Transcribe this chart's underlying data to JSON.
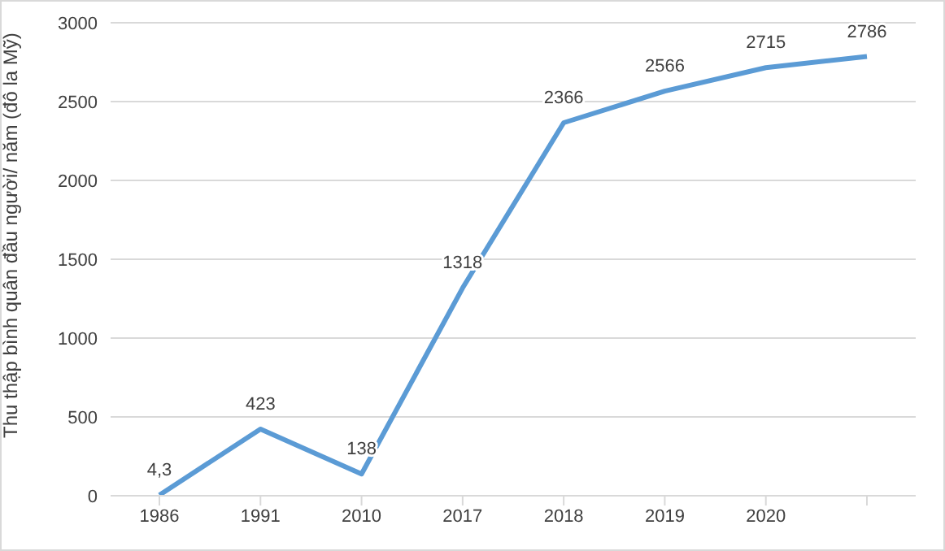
{
  "chart_data": {
    "type": "line",
    "ylabel": "Thu thập bình quân đầu người/ năm (đô la Mỹ)",
    "categories": [
      "1986",
      "1991",
      "2010",
      "2017",
      "2018",
      "2019",
      "2020",
      null
    ],
    "series": [
      {
        "color": "#5b9bd5",
        "values": [
          4.3,
          423,
          138,
          1318,
          2366,
          2566,
          2715,
          2786
        ],
        "value_labels": [
          "4,3",
          "423",
          "138",
          "1318",
          "2366",
          "2566",
          "2715",
          "2786"
        ]
      }
    ],
    "ylim": [
      0,
      3000
    ],
    "yticks": [
      0,
      500,
      1000,
      1500,
      2000,
      2500,
      3000
    ],
    "grid": "y",
    "legend": false,
    "marker": "none",
    "line_style": "solid"
  }
}
